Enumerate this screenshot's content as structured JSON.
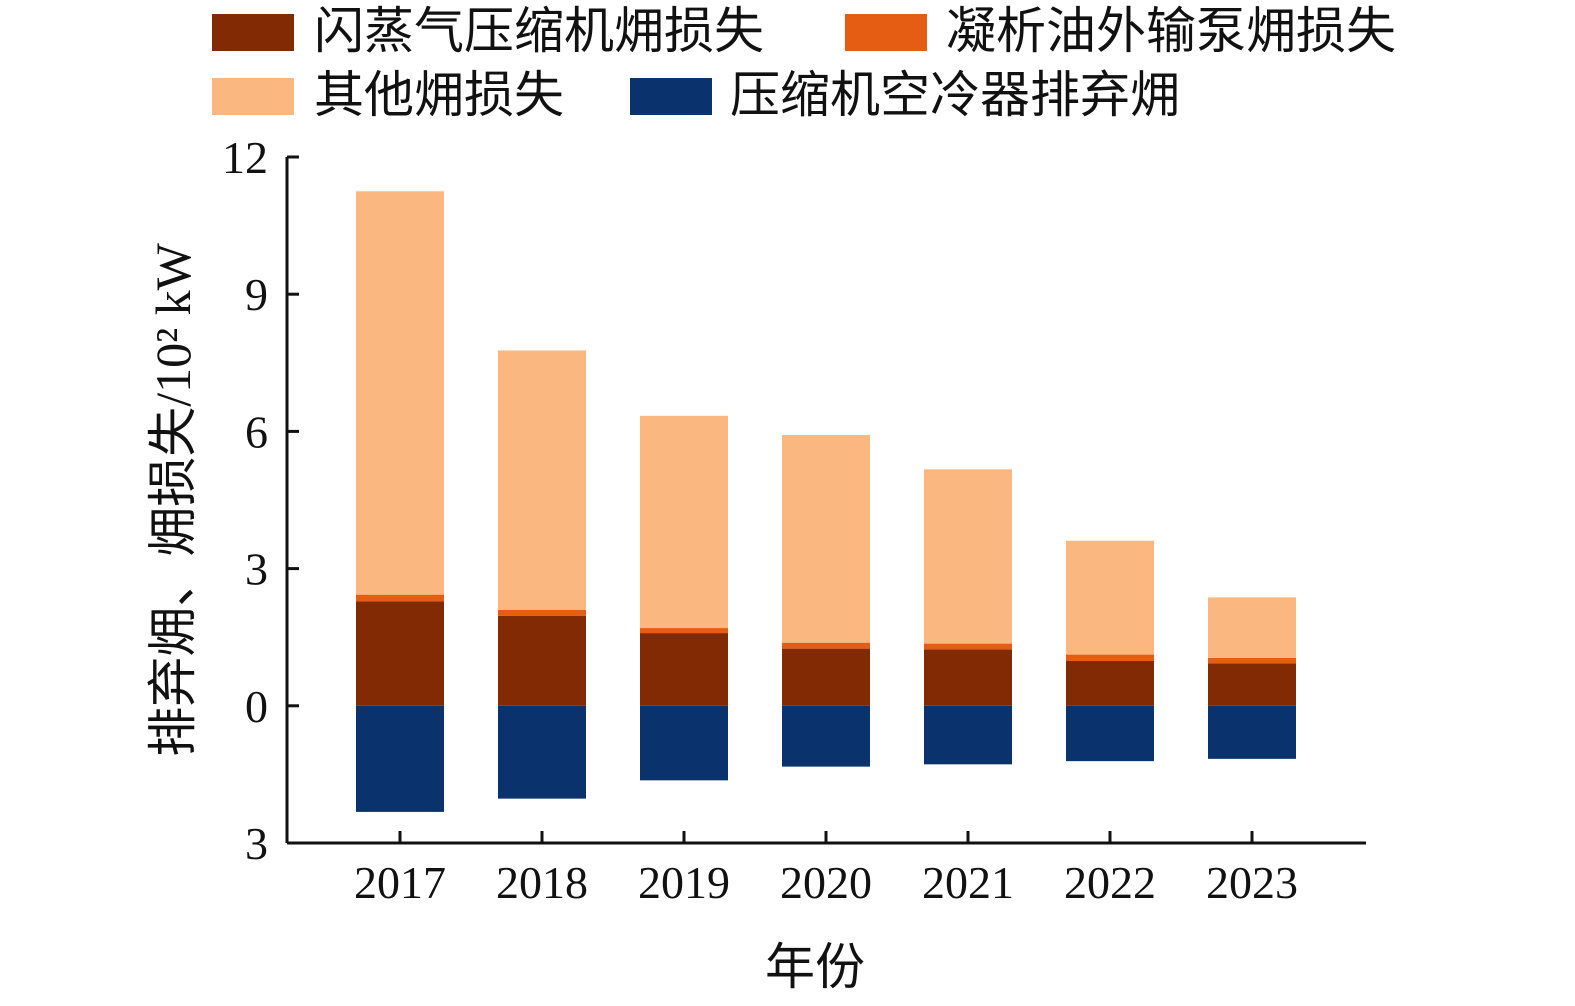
{
  "chart_data": {
    "type": "bar",
    "stacked": true,
    "categories": [
      "2017",
      "2018",
      "2019",
      "2020",
      "2021",
      "2022",
      "2023"
    ],
    "xlabel": "年份",
    "ylabel": "排弃㶲、㶲损失/10² kW",
    "ylim": [
      -3,
      12
    ],
    "yticks": [
      12,
      9,
      6,
      3,
      0,
      -3
    ],
    "ytick_labels": [
      "12",
      "9",
      "6",
      "3",
      "0",
      "3"
    ],
    "legend_position": "top",
    "series": [
      {
        "name": "闪蒸气压缩机㶲损失",
        "color": "#822a04",
        "values": [
          2.28,
          1.97,
          1.59,
          1.25,
          1.23,
          0.98,
          0.93
        ]
      },
      {
        "name": "凝析油外输泵㶲损失",
        "color": "#e55d12",
        "values": [
          0.15,
          0.13,
          0.11,
          0.13,
          0.13,
          0.14,
          0.12
        ]
      },
      {
        "name": "其他㶲损失",
        "color": "#fab77f",
        "values": [
          8.82,
          5.67,
          4.64,
          4.54,
          3.81,
          2.49,
          1.32
        ]
      },
      {
        "name": "压缩机空冷器排弃㶲",
        "color": "#0a336d",
        "values": [
          -2.32,
          -2.03,
          -1.63,
          -1.33,
          -1.28,
          -1.21,
          -1.16
        ]
      }
    ]
  }
}
